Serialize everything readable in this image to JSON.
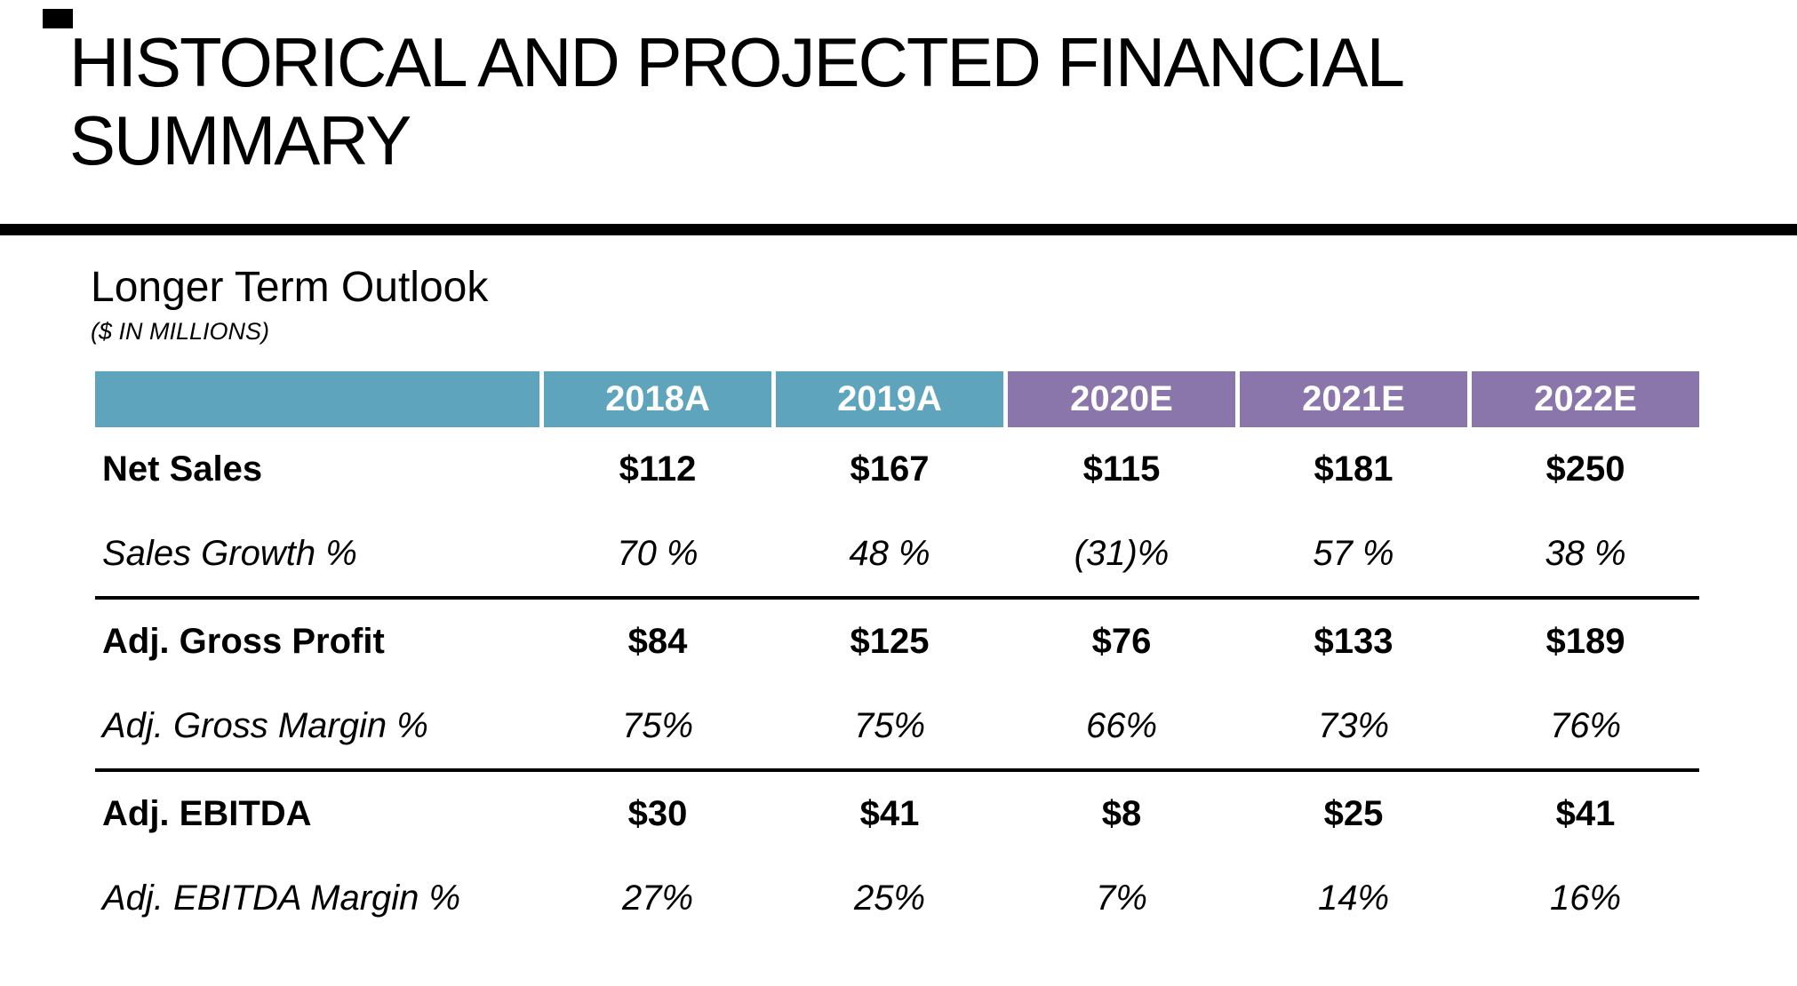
{
  "slide": {
    "title": "HISTORICAL AND PROJECTED FINANCIAL SUMMARY",
    "section_heading": "Longer Term Outlook",
    "units_note": "($ IN MILLIONS)"
  },
  "colors": {
    "actual_header_bg": "#5EA4BD",
    "estimate_header_bg": "#8A76AB",
    "header_text": "#FFFFFF",
    "rule": "#000000"
  },
  "table": {
    "columns": [
      "",
      "2018A",
      "2019A",
      "2020E",
      "2021E",
      "2022E"
    ],
    "column_types": [
      "label",
      "actual",
      "actual",
      "estimate",
      "estimate",
      "estimate"
    ],
    "rows": [
      {
        "label": "Net Sales",
        "style": "bold",
        "values": [
          "$112",
          "$167",
          "$115",
          "$181",
          "$250"
        ]
      },
      {
        "label": "Sales Growth %",
        "style": "italic",
        "values": [
          "70 %",
          "48 %",
          "(31)%",
          "57 %",
          "38 %"
        ]
      },
      {
        "label": "Adj. Gross Profit",
        "style": "bold",
        "values": [
          "$84",
          "$125",
          "$76",
          "$133",
          "$189"
        ]
      },
      {
        "label": "Adj. Gross Margin %",
        "style": "italic",
        "values": [
          "75%",
          "75%",
          "66%",
          "73%",
          "76%"
        ]
      },
      {
        "label": "Adj. EBITDA",
        "style": "bold",
        "values": [
          "$30",
          "$41",
          "$8",
          "$25",
          "$41"
        ]
      },
      {
        "label": "Adj. EBITDA Margin %",
        "style": "italic",
        "values": [
          "27%",
          "25%",
          "7%",
          "14%",
          "16%"
        ]
      }
    ]
  }
}
